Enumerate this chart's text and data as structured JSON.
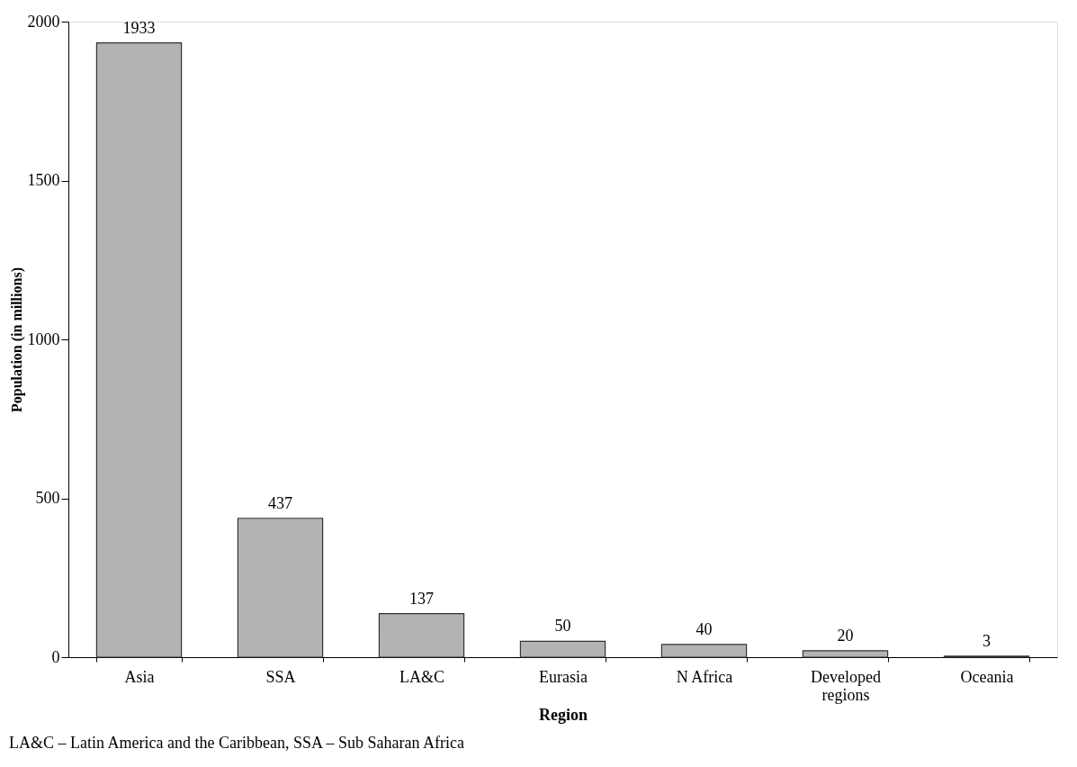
{
  "chart_data": {
    "type": "bar",
    "xlabel": "Region",
    "ylabel": "Population (in millions)",
    "categories": [
      "Asia",
      "SSA",
      "LA&C",
      "Eurasia",
      "N Africa",
      "Developed regions",
      "Oceania"
    ],
    "values": [
      1933,
      437,
      137,
      50,
      40,
      20,
      3
    ],
    "color": "#b3b3b3",
    "ylim": [
      0,
      2000
    ],
    "yticks": [
      0,
      500,
      1000,
      1500,
      2000
    ],
    "grid": false,
    "data_labels": true,
    "annotations": [
      "LA&C – Latin America and the Caribbean, SSA – Sub Saharan Africa"
    ]
  }
}
